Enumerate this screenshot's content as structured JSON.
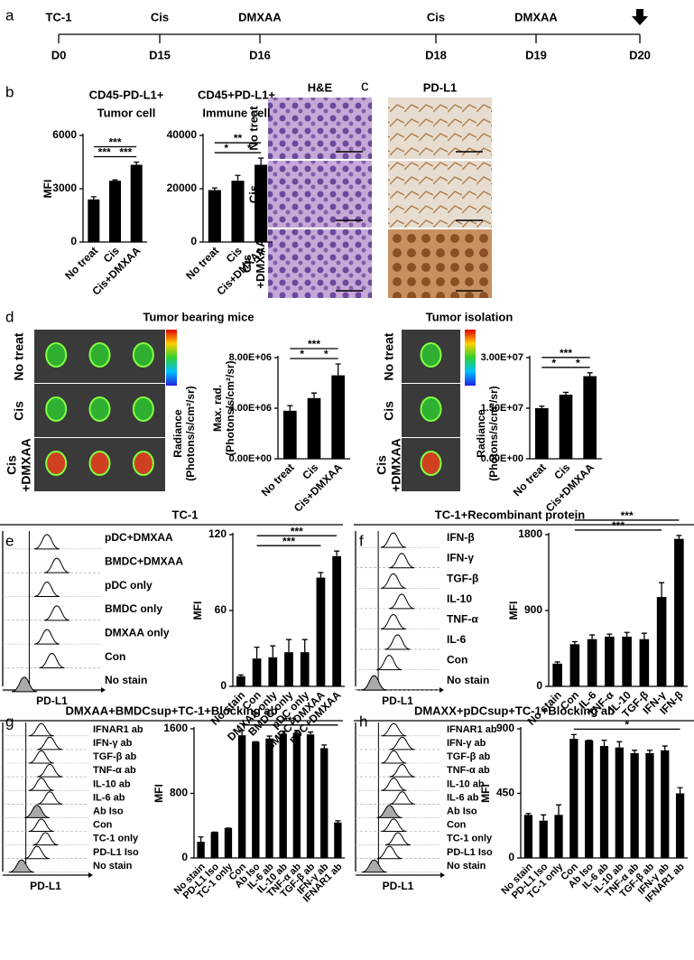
{
  "panels": [
    "a",
    "b",
    "c",
    "d",
    "e",
    "f",
    "g",
    "h"
  ],
  "timeline": {
    "events": [
      "TC-1",
      "Cis",
      "DMXAA",
      "Cis",
      "DMXAA"
    ],
    "days": [
      "D0",
      "D15",
      "D16",
      "D18",
      "D19",
      "D20"
    ]
  },
  "histology": {
    "columns": [
      "H&E",
      "PD-L1"
    ],
    "rows": [
      [
        "No treat"
      ],
      [
        "Cis"
      ],
      [
        "Cis",
        "+DMXAA"
      ]
    ]
  },
  "imaging": [
    {
      "rows": [
        [
          "No treat"
        ],
        [
          "Cis"
        ],
        [
          "Cis",
          "+DMXAA"
        ]
      ],
      "scale_label": [
        "Radiance",
        "(Photons/s/cm²/sr)"
      ]
    },
    {
      "rows": [
        [
          "No treat"
        ],
        [
          "Cis"
        ],
        [
          "Cis",
          "+DMXAA"
        ]
      ],
      "scale_label": [
        "Radiance",
        "(Photons/s/cm²/sr)"
      ]
    }
  ],
  "chart_data": [
    {
      "type": "bar",
      "title": [
        "CD45-PD-L1+",
        "Tumor cell"
      ],
      "ylabel": [
        "MFI"
      ],
      "categories": [
        "No treat",
        "Cis",
        "Cis+DMXAA"
      ],
      "values": [
        2400,
        3450,
        4350
      ],
      "errors": [
        150,
        50,
        150
      ],
      "ylim": [
        0,
        6000
      ],
      "yticks": [
        0,
        3000,
        6000
      ],
      "color": "#000000",
      "significance": [
        {
          "label": "***",
          "from": "No treat",
          "to": "Cis+DMXAA"
        },
        {
          "label": "***",
          "from": "No treat",
          "to": "Cis"
        },
        {
          "label": "***",
          "from": "Cis",
          "to": "Cis+DMXAA"
        }
      ]
    },
    {
      "type": "bar",
      "title": [
        "CD45+PD-L1+",
        "Immune cell"
      ],
      "categories": [
        "No treat",
        "Cis",
        "Cis+DMXAA"
      ],
      "values": [
        19500,
        23000,
        29000
      ],
      "errors": [
        800,
        2000,
        2500
      ],
      "ylim": [
        0,
        40000
      ],
      "yticks": [
        0,
        20000,
        40000
      ],
      "color": "#000000",
      "significance": [
        {
          "label": "**",
          "from": "No treat",
          "to": "Cis+DMXAA"
        },
        {
          "label": "*",
          "from": "No treat",
          "to": "Cis"
        },
        {
          "label": "*",
          "from": "Cis",
          "to": "Cis+DMXAA"
        }
      ]
    },
    {
      "type": "bar",
      "title": [
        "Tumor bearing  mice"
      ],
      "ylabel": [
        "Max. rad.",
        "(Photons/s/cm²/sr)"
      ],
      "categories": [
        "No treat",
        "Cis",
        "Cis+DMXAA"
      ],
      "values": [
        3800000,
        4800000,
        6600000
      ],
      "errors": [
        400000,
        400000,
        900000
      ],
      "ylim": [
        0,
        8000000
      ],
      "yticks": [
        {
          "value": 0,
          "label": "0.00E+00"
        },
        {
          "value": 4000000,
          "label": "4.00E+06"
        },
        {
          "value": 8000000,
          "label": "8.00E+06"
        }
      ],
      "color": "#000000",
      "significance": [
        {
          "label": "***",
          "from": "No treat",
          "to": "Cis+DMXAA"
        },
        {
          "label": "*",
          "from": "No treat",
          "to": "Cis"
        },
        {
          "label": "*",
          "from": "Cis",
          "to": "Cis+DMXAA"
        }
      ]
    },
    {
      "type": "bar",
      "title": [
        "Tumor isolation"
      ],
      "categories": [
        "No treat",
        "Cis",
        "Cis+DMXAA"
      ],
      "values": [
        15000000,
        19000000,
        24500000
      ],
      "errors": [
        600000,
        700000,
        1000000
      ],
      "ylim": [
        0,
        30000000
      ],
      "yticks": [
        {
          "value": 0,
          "label": "0.00E+00"
        },
        {
          "value": 15000000,
          "label": "1.50E+07"
        },
        {
          "value": 30000000,
          "label": "3.00E+07"
        }
      ],
      "color": "#000000",
      "significance": [
        {
          "label": "***",
          "from": "No treat",
          "to": "Cis+DMXAA"
        },
        {
          "label": "*",
          "from": "No treat",
          "to": "Cis"
        },
        {
          "label": "*",
          "from": "Cis",
          "to": "Cis+DMXAA"
        }
      ]
    },
    {
      "type": "bar",
      "title": [
        "TC-1"
      ],
      "ylabel": [
        "MFI"
      ],
      "histogram": {
        "labels": [
          "pDC+DMXAA",
          "BMDC+DMXAA",
          "pDC only",
          "BMDC only",
          "DMXAA only",
          "Con",
          "No stain"
        ],
        "xlabel": "PD-L1"
      },
      "categories": [
        "No stain",
        "Con",
        "DMXAA only",
        "BMDC only",
        "pDC only",
        "BMDC+DMXAA",
        "pDC+DMXAA"
      ],
      "values": [
        8,
        22,
        23,
        27,
        27,
        86,
        103
      ],
      "errors": [
        1,
        9,
        9,
        10,
        10,
        4,
        4
      ],
      "ylim": [
        0,
        120
      ],
      "yticks": [
        0,
        60,
        120
      ],
      "color": "#000000",
      "significance": [
        {
          "label": "***",
          "from": "Con",
          "to": "pDC+DMXAA"
        },
        {
          "label": "***",
          "from": "Con",
          "to": "BMDC+DMXAA"
        }
      ]
    },
    {
      "type": "bar",
      "title": [
        "TC-1+Recombinant protein"
      ],
      "ylabel": [
        "MFI"
      ],
      "histogram": {
        "labels": [
          "IFN-β",
          "IFN-γ",
          "TGF-β",
          "IL-10",
          "TNF-α",
          "IL-6",
          "Con",
          "No stain"
        ],
        "xlabel": "PD-L1"
      },
      "categories": [
        "No stain",
        "Con",
        "IL-6",
        "TNF-α",
        "IL-10",
        "TGF-β",
        "IFN-γ",
        "IFN-β"
      ],
      "values": [
        270,
        500,
        560,
        590,
        590,
        560,
        1060,
        1750
      ],
      "errors": [
        20,
        30,
        50,
        30,
        50,
        70,
        170,
        40
      ],
      "ylim": [
        0,
        1800
      ],
      "yticks": [
        0,
        900,
        1800
      ],
      "color": "#000000",
      "significance": [
        {
          "label": "***",
          "from": "Con",
          "to": "IFN-β"
        },
        {
          "label": "***",
          "from": "Con",
          "to": "IFN-γ"
        }
      ]
    },
    {
      "type": "bar",
      "title": [
        "DMXAA+BMDCsup+TC-1+Blocking ab"
      ],
      "ylabel": [
        "MFI"
      ],
      "histogram": {
        "labels": [
          "IFNAR1 ab",
          "IFN-γ ab",
          "TGF-β ab",
          "TNF-α ab",
          "IL-10 ab",
          "IL-6 ab",
          "Ab Iso",
          "Con",
          "TC-1 only",
          "PD-L1 Iso",
          "No stain"
        ],
        "xlabel": "PD-L1"
      },
      "categories": [
        "No stain",
        "PD-L1 Iso",
        "TC-1 only",
        "Con",
        "Ab Iso",
        "IL-6 ab",
        "IL-10 ab",
        "TNF-α ab",
        "TGF-β ab",
        "IFN-γ ab",
        "IFNAR1 ab"
      ],
      "values": [
        200,
        320,
        370,
        1520,
        1440,
        1480,
        1540,
        1550,
        1530,
        1360,
        440
      ],
      "errors": [
        60,
        0,
        0,
        60,
        0,
        30,
        30,
        30,
        30,
        40,
        20
      ],
      "ylim": [
        0,
        1600
      ],
      "yticks": [
        0,
        800,
        1600
      ],
      "color": "#000000",
      "significance": [
        {
          "label": "***",
          "from": "Con",
          "to": "IFNAR1 ab"
        }
      ]
    },
    {
      "type": "bar",
      "title": [
        "DMAXX+pDCsup+TC-1+Blocking ab"
      ],
      "ylabel": [
        "MFI"
      ],
      "histogram": {
        "labels": [
          "IFNAR1 ab",
          "IFN-γ ab",
          "TGF-β ab",
          "TNF-α ab",
          "IL-10 ab",
          "IL-6 ab",
          "Ab Iso",
          "Con",
          "TC-1 only",
          "PD-L1 Iso",
          "No stain"
        ],
        "xlabel": "PD-L1"
      },
      "categories": [
        "No stain",
        "PD-L1 Iso",
        "TC-1 only",
        "Con",
        "Ab Iso",
        "IL-6 ab",
        "IL-10 ab",
        "TNF-α ab",
        "TGF-β ab",
        "IFN-γ ab",
        "IFNAR1 ab"
      ],
      "values": [
        300,
        260,
        300,
        830,
        820,
        780,
        770,
        730,
        730,
        750,
        450
      ],
      "errors": [
        10,
        40,
        70,
        30,
        0,
        40,
        40,
        20,
        20,
        30,
        40
      ],
      "ylim": [
        0,
        900
      ],
      "yticks": [
        0,
        450,
        900
      ],
      "color": "#000000",
      "significance": [
        {
          "label": "*",
          "from": "Con",
          "to": "IFNAR1 ab"
        }
      ]
    }
  ]
}
